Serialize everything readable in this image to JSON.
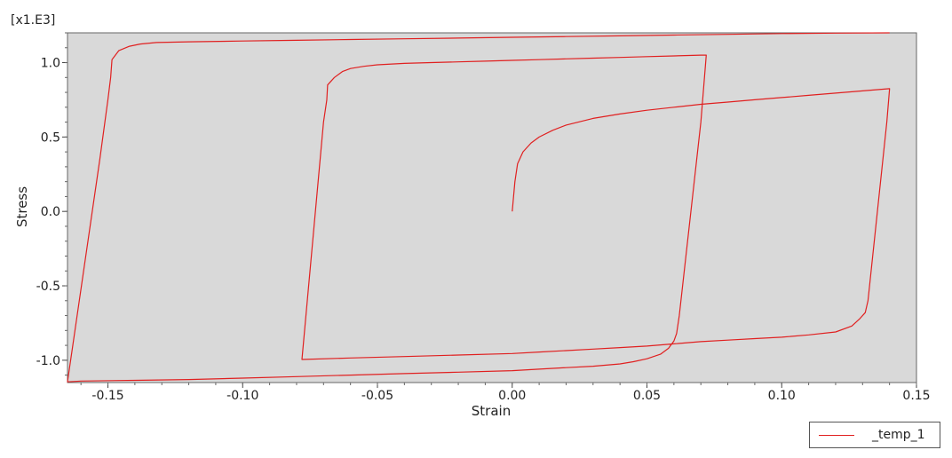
{
  "chart_data": {
    "type": "line",
    "xlabel": "Strain",
    "ylabel": "Stress",
    "y_multiplier": "[x1.E3]",
    "xlim": [
      -0.165,
      0.15
    ],
    "ylim": [
      -1.15,
      1.2
    ],
    "x_ticks": [
      -0.15,
      -0.1,
      -0.05,
      0.0,
      0.05,
      0.1,
      0.15
    ],
    "x_tick_labels": [
      "-0.15",
      "-0.10",
      "-0.05",
      "0.00",
      "0.05",
      "0.10",
      "0.15"
    ],
    "y_ticks": [
      -1.0,
      -0.5,
      0.0,
      0.5,
      1.0
    ],
    "y_tick_labels": [
      "-1.0",
      "-0.5",
      "0.0",
      "0.5",
      "1.0"
    ],
    "grid": false,
    "legend_position": "bottom-right",
    "plot_background": "#d9d9d9",
    "series": [
      {
        "name": "_temp_1",
        "color": "#e02020",
        "x": [
          0.0,
          0.0005,
          0.001,
          0.002,
          0.004,
          0.007,
          0.01,
          0.015,
          0.02,
          0.03,
          0.04,
          0.05,
          0.06,
          0.07,
          0.08,
          0.09,
          0.1,
          0.11,
          0.12,
          0.13,
          0.14,
          0.139,
          0.132,
          0.131,
          0.129,
          0.126,
          0.12,
          0.11,
          0.1,
          0.09,
          0.08,
          0.07,
          0.06,
          0.05,
          0.04,
          0.03,
          0.02,
          0.01,
          0.0,
          -0.02,
          -0.04,
          -0.06,
          -0.078,
          -0.07,
          -0.0688,
          -0.0685,
          -0.066,
          -0.063,
          -0.06,
          -0.055,
          -0.05,
          -0.04,
          -0.03,
          -0.02,
          -0.01,
          0.0,
          0.01,
          0.02,
          0.03,
          0.04,
          0.05,
          0.06,
          0.07,
          0.072,
          0.07,
          0.062,
          0.061,
          0.06,
          0.058,
          0.055,
          0.05,
          0.045,
          0.04,
          0.03,
          0.02,
          0.01,
          0.0,
          -0.02,
          -0.04,
          -0.06,
          -0.08,
          -0.1,
          -0.12,
          -0.14,
          -0.16,
          -0.165,
          -0.153,
          -0.15,
          -0.149,
          -0.1485,
          -0.146,
          -0.142,
          -0.138,
          -0.132,
          -0.12,
          -0.1,
          -0.08,
          -0.06,
          -0.04,
          -0.02,
          0.0,
          0.02,
          0.04,
          0.06,
          0.08,
          0.1,
          0.12,
          0.14
        ],
        "y": [
          0.0,
          0.1,
          0.2,
          0.32,
          0.4,
          0.46,
          0.5,
          0.545,
          0.58,
          0.625,
          0.655,
          0.68,
          0.7,
          0.72,
          0.735,
          0.75,
          0.765,
          0.78,
          0.795,
          0.81,
          0.825,
          0.6,
          -0.6,
          -0.68,
          -0.72,
          -0.77,
          -0.81,
          -0.83,
          -0.845,
          -0.855,
          -0.865,
          -0.875,
          -0.89,
          -0.905,
          -0.915,
          -0.925,
          -0.935,
          -0.945,
          -0.955,
          -0.965,
          -0.975,
          -0.985,
          -0.995,
          0.6,
          0.75,
          0.85,
          0.9,
          0.94,
          0.96,
          0.975,
          0.985,
          0.995,
          1.0,
          1.005,
          1.01,
          1.015,
          1.02,
          1.025,
          1.03,
          1.035,
          1.04,
          1.045,
          1.05,
          1.05,
          0.6,
          -0.7,
          -0.82,
          -0.87,
          -0.92,
          -0.96,
          -0.99,
          -1.01,
          -1.025,
          -1.04,
          -1.05,
          -1.06,
          -1.07,
          -1.08,
          -1.09,
          -1.1,
          -1.11,
          -1.12,
          -1.13,
          -1.135,
          -1.14,
          -1.145,
          0.35,
          0.75,
          0.9,
          1.02,
          1.08,
          1.11,
          1.125,
          1.135,
          1.14,
          1.145,
          1.15,
          1.155,
          1.16,
          1.165,
          1.17,
          1.175,
          1.18,
          1.185,
          1.19,
          1.195,
          1.198,
          1.2
        ]
      }
    ]
  }
}
